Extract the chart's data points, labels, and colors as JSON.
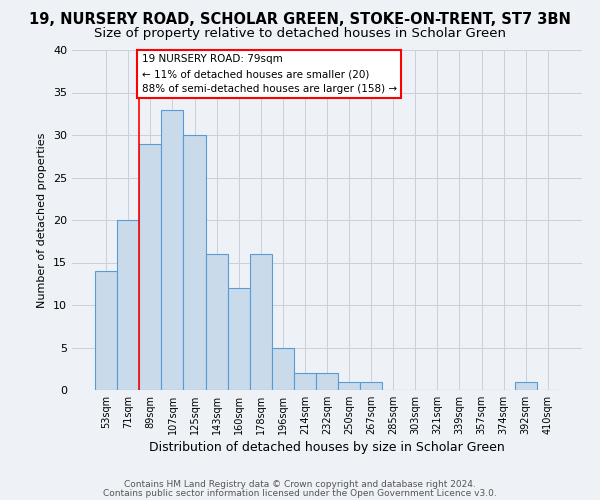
{
  "title": "19, NURSERY ROAD, SCHOLAR GREEN, STOKE-ON-TRENT, ST7 3BN",
  "subtitle": "Size of property relative to detached houses in Scholar Green",
  "xlabel": "Distribution of detached houses by size in Scholar Green",
  "ylabel": "Number of detached properties",
  "categories": [
    "53sqm",
    "71sqm",
    "89sqm",
    "107sqm",
    "125sqm",
    "143sqm",
    "160sqm",
    "178sqm",
    "196sqm",
    "214sqm",
    "232sqm",
    "250sqm",
    "267sqm",
    "285sqm",
    "303sqm",
    "321sqm",
    "339sqm",
    "357sqm",
    "374sqm",
    "392sqm",
    "410sqm"
  ],
  "values": [
    14,
    20,
    29,
    33,
    30,
    16,
    12,
    16,
    5,
    2,
    2,
    1,
    1,
    0,
    0,
    0,
    0,
    0,
    0,
    1,
    0
  ],
  "bar_color": "#c9daea",
  "bar_edge_color": "#5b9bd5",
  "grid_color": "#c8d0dc",
  "ylim": [
    0,
    40
  ],
  "yticks": [
    0,
    5,
    10,
    15,
    20,
    25,
    30,
    35,
    40
  ],
  "red_line_index": 1.5,
  "annotation_title": "19 NURSERY ROAD: 79sqm",
  "annotation_line1": "← 11% of detached houses are smaller (20)",
  "annotation_line2": "88% of semi-detached houses are larger (158) →",
  "annotation_box_color": "white",
  "annotation_box_edge": "red",
  "footer_line1": "Contains HM Land Registry data © Crown copyright and database right 2024.",
  "footer_line2": "Contains public sector information licensed under the Open Government Licence v3.0.",
  "background_color": "#eef2f7",
  "title_fontsize": 10.5,
  "subtitle_fontsize": 9.5,
  "ylabel_fontsize": 8,
  "xlabel_fontsize": 9
}
